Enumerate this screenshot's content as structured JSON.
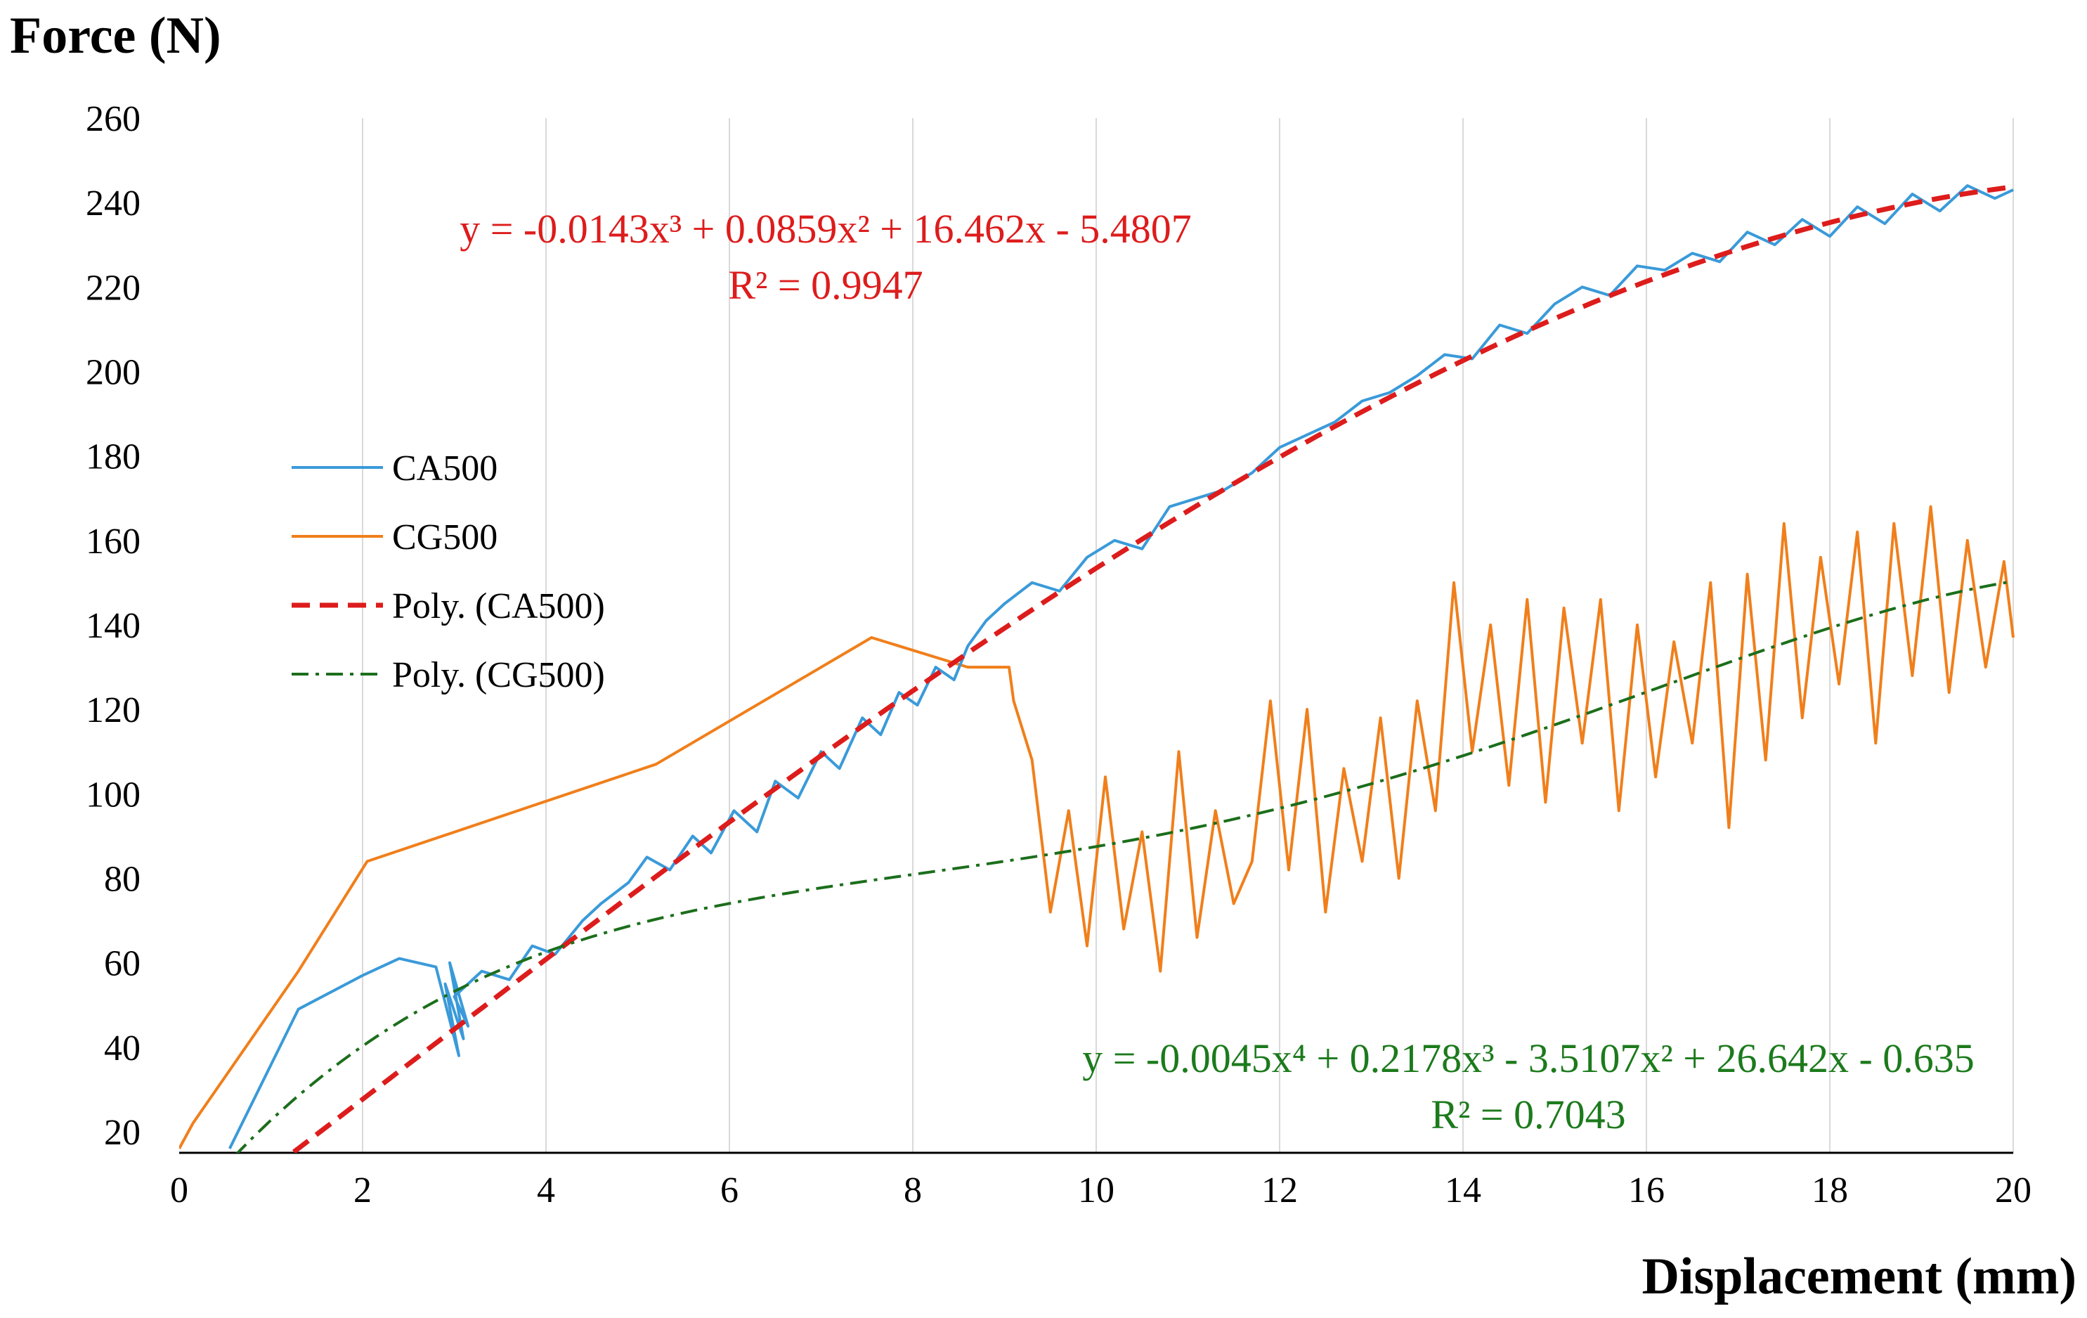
{
  "chart_data": {
    "type": "line",
    "ylabel": "Force (N)",
    "xlabel": "Displacement (mm)",
    "xlim": [
      0,
      20
    ],
    "ylim": [
      15,
      260
    ],
    "x_ticks": [
      0,
      2,
      4,
      6,
      8,
      10,
      12,
      14,
      16,
      18,
      20
    ],
    "y_ticks": [
      20,
      40,
      60,
      80,
      100,
      120,
      140,
      160,
      180,
      200,
      220,
      240,
      260
    ],
    "grid": "vertical",
    "legend_position": "left-middle",
    "series": [
      {
        "name": "CA500",
        "color": "#3a9ad9",
        "style": "solid",
        "x": [
          0.55,
          1.3,
          2.0,
          2.4,
          2.8,
          3.05,
          2.9,
          3.1,
          2.95,
          3.15,
          3.0,
          3.3,
          3.6,
          3.85,
          4.1,
          4.4,
          4.6,
          4.9,
          5.1,
          5.35,
          5.6,
          5.8,
          6.05,
          6.3,
          6.5,
          6.75,
          7.0,
          7.2,
          7.45,
          7.65,
          7.85,
          8.05,
          8.25,
          8.45,
          8.6,
          8.8,
          9.0,
          9.3,
          9.6,
          9.9,
          10.2,
          10.5,
          10.8,
          11.1,
          11.4,
          11.7,
          12.0,
          12.3,
          12.6,
          12.9,
          13.2,
          13.5,
          13.8,
          14.1,
          14.4,
          14.7,
          15.0,
          15.3,
          15.6,
          15.9,
          16.2,
          16.5,
          16.8,
          17.1,
          17.4,
          17.7,
          18.0,
          18.3,
          18.6,
          18.9,
          19.2,
          19.5,
          19.8,
          20.0
        ],
        "y": [
          16,
          49,
          57,
          61,
          59,
          38,
          55,
          42,
          60,
          45,
          52,
          58,
          56,
          64,
          62,
          70,
          74,
          79,
          85,
          82,
          90,
          86,
          96,
          91,
          103,
          99,
          110,
          106,
          118,
          114,
          124,
          121,
          130,
          127,
          135,
          141,
          145,
          150,
          148,
          156,
          160,
          158,
          168,
          170,
          172,
          176,
          182,
          185,
          188,
          193,
          195,
          199,
          204,
          203,
          211,
          209,
          216,
          220,
          218,
          225,
          224,
          228,
          226,
          233,
          230,
          236,
          232,
          239,
          235,
          242,
          238,
          244,
          241,
          243
        ]
      },
      {
        "name": "CG500",
        "color": "#f07f1b",
        "style": "solid",
        "x": [
          0,
          0.15,
          1.3,
          2.05,
          5.2,
          7.55,
          8.6,
          9.05,
          9.1,
          9.3,
          9.5,
          9.7,
          9.9,
          10.1,
          10.3,
          10.5,
          10.7,
          10.9,
          11.1,
          11.3,
          11.5,
          11.7,
          11.9,
          12.1,
          12.3,
          12.5,
          12.7,
          12.9,
          13.1,
          13.3,
          13.5,
          13.7,
          13.9,
          14.1,
          14.3,
          14.5,
          14.7,
          14.9,
          15.1,
          15.3,
          15.5,
          15.7,
          15.9,
          16.1,
          16.3,
          16.5,
          16.7,
          16.9,
          17.1,
          17.3,
          17.5,
          17.7,
          17.9,
          18.1,
          18.3,
          18.5,
          18.7,
          18.9,
          19.1,
          19.3,
          19.5,
          19.7,
          19.9,
          20.0
        ],
        "y": [
          16,
          22,
          58,
          84,
          107,
          137,
          130,
          130,
          122,
          108,
          72,
          96,
          64,
          104,
          68,
          91,
          58,
          110,
          66,
          96,
          74,
          84,
          122,
          82,
          120,
          72,
          106,
          84,
          118,
          80,
          122,
          96,
          150,
          110,
          140,
          102,
          146,
          98,
          144,
          112,
          146,
          96,
          140,
          104,
          136,
          112,
          150,
          92,
          152,
          108,
          164,
          118,
          156,
          126,
          162,
          112,
          164,
          128,
          168,
          124,
          160,
          130,
          155,
          137
        ]
      },
      {
        "name": "Poly. (CA500)",
        "color": "#dd1c1c",
        "style": "dashed",
        "fit": "poly3",
        "coefficients": [
          -0.0143,
          0.0859,
          16.462,
          -5.4807
        ],
        "x_range": [
          1.25,
          20
        ]
      },
      {
        "name": "Poly. (CG500)",
        "color": "#1c6e1c",
        "style": "dashdot",
        "fit": "poly4",
        "coefficients": [
          -0.0045,
          0.2178,
          -3.5107,
          26.642,
          -0.635
        ],
        "x_range": [
          0.6,
          20
        ]
      }
    ],
    "annotations": [
      {
        "text": "y = -0.0143x³  + 0.0859x²  + 16.462x  - 5.4807",
        "color": "#dd1c1c"
      },
      {
        "text": "R² = 0.9947",
        "color": "#dd1c1c"
      },
      {
        "text": "y = -0.0045x⁴  + 0.2178x³  - 3.5107x²  + 26.642x  - 0.635",
        "color": "#1c7a1c"
      },
      {
        "text": "R² = 0.7043",
        "color": "#1c7a1c"
      }
    ]
  }
}
